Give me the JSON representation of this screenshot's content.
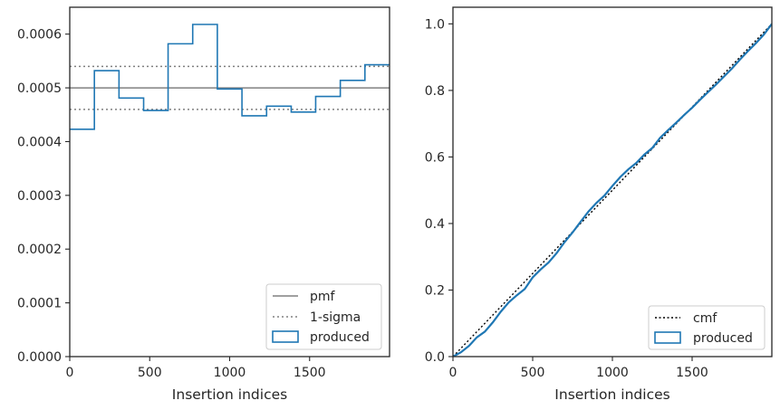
{
  "colors": {
    "produced": "#1f77b4",
    "reference": "#808080",
    "cmf": "#000000",
    "axis": "#262626"
  },
  "chart_data": [
    {
      "type": "histogram",
      "xlabel": "Insertion indices",
      "ylabel": "",
      "xlim": [
        0,
        2000
      ],
      "ylim": [
        0,
        0.00065
      ],
      "xticks": [
        0,
        500,
        1000,
        1500
      ],
      "xtick_labels": [
        "0",
        "500",
        "1000",
        "1500"
      ],
      "yticks": [
        0,
        0.0001,
        0.0002,
        0.0003,
        0.0004,
        0.0005,
        0.0006
      ],
      "ytick_labels": [
        "0.0000",
        "0.0001",
        "0.0002",
        "0.0003",
        "0.0004",
        "0.0005",
        "0.0006"
      ],
      "bin_edges": [
        0,
        154,
        308,
        462,
        615,
        769,
        923,
        1077,
        1231,
        1385,
        1538,
        1692,
        1846,
        2000
      ],
      "values": [
        0.000423,
        0.000532,
        0.000481,
        0.000458,
        0.000582,
        0.000618,
        0.000498,
        0.000448,
        0.000466,
        0.000455,
        0.000484,
        0.000514,
        0.000543
      ],
      "hlines": [
        {
          "name": "pmf",
          "y": 0.0005,
          "style": "solid"
        },
        {
          "name": "1-sigma",
          "y": 0.00054,
          "style": "dotted"
        },
        {
          "name": "1-sigma",
          "y": 0.00046,
          "style": "dotted"
        }
      ],
      "legend": {
        "position": "lower right",
        "entries": [
          "pmf",
          "1-sigma",
          "produced"
        ]
      },
      "grid": false
    },
    {
      "type": "line",
      "xlabel": "Insertion indices",
      "ylabel": "",
      "xlim": [
        0,
        2000
      ],
      "ylim": [
        0,
        1.05
      ],
      "xticks": [
        0,
        500,
        1000,
        1500
      ],
      "xtick_labels": [
        "0",
        "500",
        "1000",
        "1500"
      ],
      "yticks": [
        0,
        0.2,
        0.4,
        0.6,
        0.8,
        1.0
      ],
      "ytick_labels": [
        "0.0",
        "0.2",
        "0.4",
        "0.6",
        "0.8",
        "1.0"
      ],
      "series": [
        {
          "name": "cmf",
          "style": "dotted",
          "x": [
            0,
            2000
          ],
          "y": [
            0,
            1
          ]
        },
        {
          "name": "produced",
          "style": "solid",
          "x": [
            0,
            50,
            100,
            150,
            200,
            250,
            300,
            350,
            400,
            450,
            500,
            550,
            600,
            650,
            700,
            750,
            800,
            850,
            900,
            950,
            1000,
            1050,
            1100,
            1150,
            1200,
            1250,
            1300,
            1350,
            1400,
            1450,
            1500,
            1550,
            1600,
            1650,
            1700,
            1750,
            1800,
            1850,
            1900,
            1950,
            2000
          ],
          "y": [
            0.0,
            0.013,
            0.032,
            0.058,
            0.075,
            0.103,
            0.135,
            0.163,
            0.184,
            0.203,
            0.238,
            0.262,
            0.283,
            0.311,
            0.344,
            0.373,
            0.405,
            0.436,
            0.462,
            0.484,
            0.513,
            0.54,
            0.563,
            0.582,
            0.607,
            0.627,
            0.658,
            0.681,
            0.703,
            0.726,
            0.748,
            0.772,
            0.795,
            0.818,
            0.842,
            0.866,
            0.893,
            0.918,
            0.942,
            0.968,
            1.0
          ]
        }
      ],
      "legend": {
        "position": "lower right",
        "entries": [
          "cmf",
          "produced"
        ]
      },
      "grid": false
    }
  ]
}
